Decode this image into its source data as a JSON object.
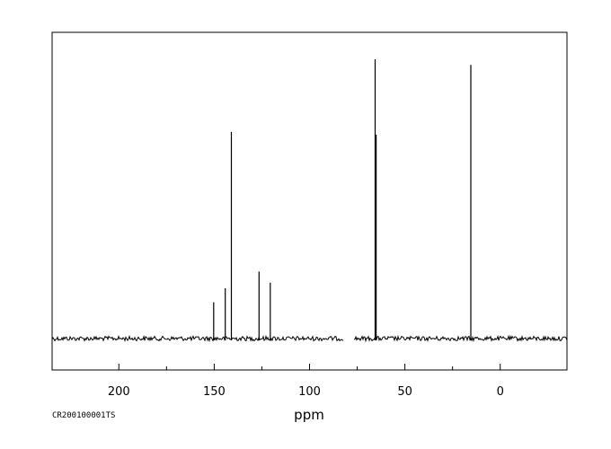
{
  "chart_data": {
    "type": "line",
    "title": "",
    "xlabel": "ppm",
    "ylabel": "",
    "sample_code": "CR200100001TS",
    "xlim": [
      235,
      -35
    ],
    "x_reversed": true,
    "y_range": [
      0,
      100
    ],
    "grid": false,
    "legend": "none",
    "major_ticks": [
      200,
      150,
      100,
      50,
      0
    ],
    "minor_ticks": [
      175,
      125,
      75,
      25
    ],
    "tick_labels": [
      "200",
      "150",
      "100",
      "50",
      "0"
    ],
    "baseline_level": 0,
    "baseline_gaps": [
      [
        82,
        77
      ]
    ],
    "peaks": [
      {
        "ppm": 150.3,
        "intensity": 13
      },
      {
        "ppm": 144.2,
        "intensity": 18
      },
      {
        "ppm": 141.0,
        "intensity": 74
      },
      {
        "ppm": 126.5,
        "intensity": 24
      },
      {
        "ppm": 120.6,
        "intensity": 20
      },
      {
        "ppm": 65.6,
        "intensity": 100
      },
      {
        "ppm": 65.1,
        "intensity": 73
      },
      {
        "ppm": 15.4,
        "intensity": 98
      }
    ],
    "colors": {
      "line": "#000000",
      "frame": "#000000",
      "background": "#ffffff"
    }
  }
}
